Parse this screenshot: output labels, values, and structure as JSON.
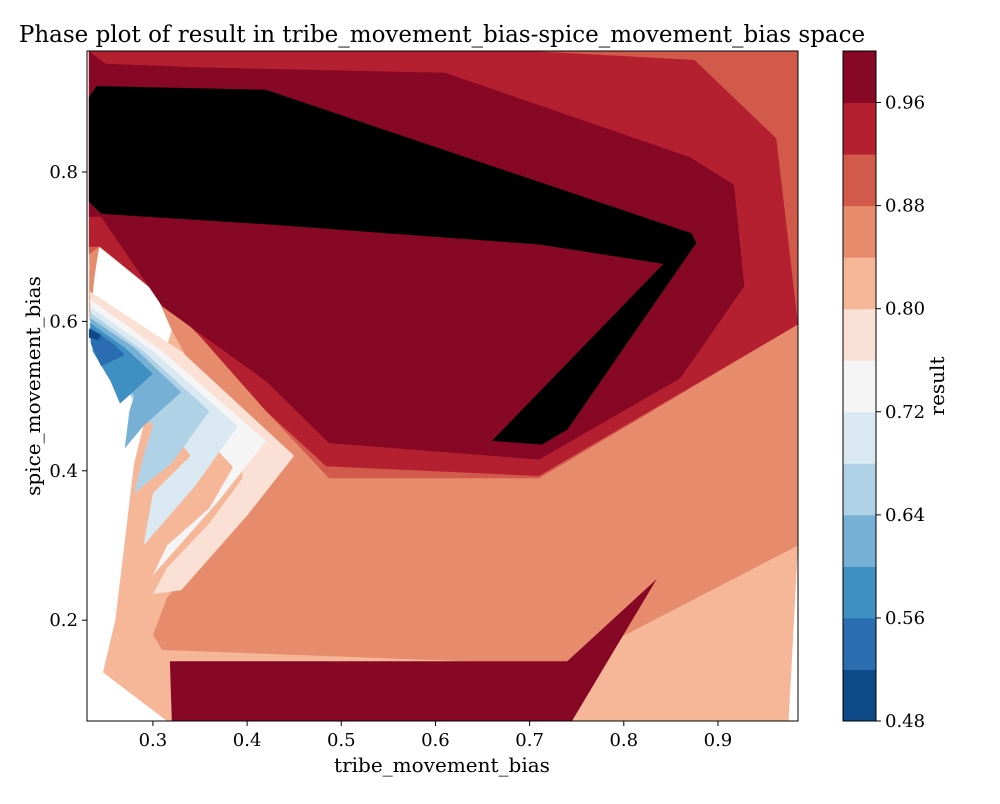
{
  "chart_data": {
    "type": "contourf",
    "title": "Phase plot of result in tribe_movement_bias-spice_movement_bias space",
    "xlabel": "tribe_movement_bias",
    "ylabel": "spice_movement_bias",
    "xlim": [
      0.23,
      0.985
    ],
    "ylim": [
      0.065,
      0.962
    ],
    "x_ticks": [
      0.3,
      0.4,
      0.5,
      0.6,
      0.7,
      0.8,
      0.9
    ],
    "y_ticks": [
      0.2,
      0.4,
      0.6,
      0.8
    ],
    "colorbar": {
      "label": "result",
      "range": [
        0.48,
        1.0
      ],
      "levels": [
        0.48,
        0.52,
        0.56,
        0.6,
        0.64,
        0.68,
        0.72,
        0.76,
        0.8,
        0.84,
        0.88,
        0.92,
        0.96,
        1.0
      ],
      "tick_values": [
        0.48,
        0.56,
        0.64,
        0.72,
        0.8,
        0.88,
        0.96
      ],
      "tick_labels": [
        "0.48",
        "0.56",
        "0.64",
        "0.72",
        "0.80",
        "0.88",
        "0.96"
      ],
      "colors": [
        "#0d4a87",
        "#2a6db1",
        "#3e90c2",
        "#76b1d5",
        "#b0d2e6",
        "#dae8f1",
        "#f5f5f5",
        "#fbe1d5",
        "#f6b799",
        "#e78b6d",
        "#d25a4b",
        "#b52030",
        "#860824"
      ]
    },
    "regions": [
      {
        "level": 8,
        "points": [
          [
            0.232,
            0.598
          ],
          [
            0.237,
            0.67
          ],
          [
            0.243,
            0.7
          ],
          [
            0.302,
            0.64
          ],
          [
            0.32,
            0.588
          ],
          [
            0.3,
            0.51
          ],
          [
            0.28,
            0.41
          ],
          [
            0.26,
            0.2
          ],
          [
            0.247,
            0.13
          ],
          [
            0.315,
            0.065
          ],
          [
            0.975,
            0.065
          ],
          [
            0.985,
            0.3
          ],
          [
            0.985,
            0.6
          ],
          [
            0.985,
            0.962
          ],
          [
            0.6,
            0.962
          ],
          [
            0.4,
            0.962
          ],
          [
            0.3,
            0.962
          ],
          [
            0.232,
            0.962
          ]
        ]
      },
      {
        "level": 9,
        "points": [
          [
            0.233,
            0.6
          ],
          [
            0.238,
            0.66
          ],
          [
            0.243,
            0.7
          ],
          [
            0.302,
            0.64
          ],
          [
            0.32,
            0.588
          ],
          [
            0.35,
            0.52
          ],
          [
            0.395,
            0.45
          ],
          [
            0.4,
            0.35
          ],
          [
            0.315,
            0.23
          ],
          [
            0.3,
            0.18
          ],
          [
            0.31,
            0.16
          ],
          [
            0.74,
            0.14
          ],
          [
            0.985,
            0.3
          ],
          [
            0.985,
            0.6
          ],
          [
            0.985,
            0.962
          ],
          [
            0.232,
            0.962
          ]
        ]
      },
      {
        "level": 10,
        "points": [
          [
            0.232,
            0.69
          ],
          [
            0.243,
            0.7
          ],
          [
            0.302,
            0.64
          ],
          [
            0.35,
            0.58
          ],
          [
            0.42,
            0.48
          ],
          [
            0.487,
            0.39
          ],
          [
            0.71,
            0.39
          ],
          [
            0.985,
            0.596
          ],
          [
            0.985,
            0.962
          ],
          [
            0.232,
            0.962
          ]
        ]
      },
      {
        "level": 11,
        "points": [
          [
            0.232,
            0.7
          ],
          [
            0.244,
            0.7
          ],
          [
            0.302,
            0.64
          ],
          [
            0.35,
            0.58
          ],
          [
            0.42,
            0.48
          ],
          [
            0.484,
            0.406
          ],
          [
            0.71,
            0.393
          ],
          [
            0.985,
            0.596
          ],
          [
            0.962,
            0.845
          ],
          [
            0.875,
            0.95
          ],
          [
            0.7,
            0.962
          ],
          [
            0.232,
            0.962
          ]
        ]
      },
      {
        "level": 12,
        "points": [
          [
            0.232,
            0.74
          ],
          [
            0.245,
            0.74
          ],
          [
            0.31,
            0.62
          ],
          [
            0.42,
            0.52
          ],
          [
            0.487,
            0.437
          ],
          [
            0.71,
            0.415
          ],
          [
            0.86,
            0.524
          ],
          [
            0.928,
            0.647
          ],
          [
            0.917,
            0.783
          ],
          [
            0.87,
            0.82
          ],
          [
            0.61,
            0.933
          ],
          [
            0.35,
            0.94
          ],
          [
            0.25,
            0.945
          ],
          [
            0.232,
            0.962
          ]
        ]
      },
      {
        "level": 12,
        "points": [
          [
            0.318,
            0.145
          ],
          [
            0.74,
            0.145
          ],
          [
            0.835,
            0.255
          ],
          [
            0.745,
            0.065
          ],
          [
            0.32,
            0.065
          ]
        ]
      },
      {
        "level": 13,
        "points": [
          [
            0.232,
            0.76
          ],
          [
            0.245,
            0.744
          ],
          [
            0.42,
            0.73
          ],
          [
            0.71,
            0.703
          ],
          [
            0.842,
            0.677
          ],
          [
            0.66,
            0.44
          ],
          [
            0.713,
            0.435
          ],
          [
            0.74,
            0.455
          ],
          [
            0.877,
            0.705
          ],
          [
            0.872,
            0.718
          ],
          [
            0.42,
            0.91
          ],
          [
            0.24,
            0.915
          ],
          [
            0.232,
            0.9
          ]
        ]
      }
    ]
  }
}
